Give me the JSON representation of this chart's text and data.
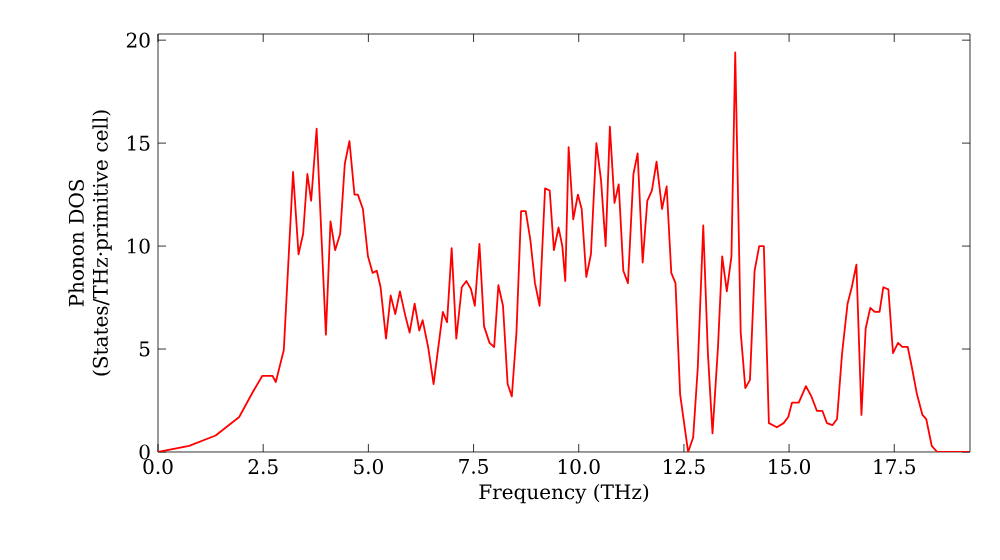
{
  "chart_data": {
    "type": "line",
    "xlabel": "Frequency (THz)",
    "ylabel": "Phonon DOS (States/THz·primitive cell)",
    "xlim": [
      0,
      19.3
    ],
    "ylim": [
      0,
      20.3
    ],
    "xticks": [
      {
        "value": 0,
        "label": "0.0"
      },
      {
        "value": 2.5,
        "label": "2.5"
      },
      {
        "value": 5,
        "label": "5.0"
      },
      {
        "value": 7.5,
        "label": "7.5"
      },
      {
        "value": 10,
        "label": "10.0"
      },
      {
        "value": 12.5,
        "label": "12.5"
      },
      {
        "value": 15,
        "label": "15.0"
      },
      {
        "value": 17.5,
        "label": "17.5"
      }
    ],
    "yticks": [
      0,
      5,
      10,
      15,
      20
    ],
    "marker": "none",
    "line_style": "solid",
    "x": [
      0,
      0.74,
      1.37,
      1.93,
      2.25,
      2.48,
      2.72,
      2.8,
      2.99,
      3.21,
      3.34,
      3.45,
      3.55,
      3.64,
      3.77,
      3.99,
      4.1,
      4.21,
      4.33,
      4.44,
      4.55,
      4.67,
      4.75,
      4.87,
      4.99,
      5.1,
      5.2,
      5.29,
      5.42,
      5.53,
      5.64,
      5.75,
      5.88,
      5.98,
      6.1,
      6.21,
      6.29,
      6.42,
      6.55,
      6.77,
      6.87,
      6.98,
      7.09,
      7.22,
      7.33,
      7.44,
      7.53,
      7.64,
      7.75,
      7.88,
      7.99,
      8.09,
      8.2,
      8.31,
      8.41,
      8.52,
      8.63,
      8.74,
      8.85,
      8.96,
      9.07,
      9.2,
      9.31,
      9.41,
      9.52,
      9.61,
      9.68,
      9.76,
      9.87,
      9.98,
      10.07,
      10.18,
      10.29,
      10.42,
      10.53,
      10.64,
      10.74,
      10.85,
      10.95,
      11.06,
      11.17,
      11.3,
      11.4,
      11.52,
      11.63,
      11.74,
      11.85,
      11.98,
      12.09,
      12.2,
      12.3,
      12.41,
      12.6,
      12.72,
      12.83,
      12.96,
      13.07,
      13.18,
      13.31,
      13.41,
      13.52,
      13.63,
      13.72,
      13.85,
      13.96,
      14.07,
      14.18,
      14.29,
      14.4,
      14.52,
      14.71,
      14.87,
      14.98,
      15.07,
      15.23,
      15.4,
      15.53,
      15.66,
      15.79,
      15.9,
      16.03,
      16.14,
      16.26,
      16.39,
      16.49,
      16.6,
      16.72,
      16.82,
      16.93,
      17.04,
      17.15,
      17.24,
      17.36,
      17.47,
      17.59,
      17.69,
      17.82,
      17.91,
      18.04,
      18.17,
      18.26,
      18.39,
      18.52,
      19.28
    ],
    "series": [
      {
        "color": "#ff0000",
        "values": [
          0,
          0.3,
          0.8,
          1.7,
          2.9,
          3.7,
          3.7,
          3.4,
          4.95,
          13.6,
          9.6,
          10.6,
          13.5,
          12.2,
          15.7,
          5.7,
          11.2,
          9.8,
          10.6,
          14.0,
          15.1,
          12.5,
          12.5,
          11.8,
          9.5,
          8.7,
          8.8,
          8.0,
          5.5,
          7.6,
          6.7,
          7.8,
          6.6,
          5.8,
          7.2,
          5.9,
          6.4,
          5.1,
          3.3,
          6.8,
          6.3,
          9.9,
          5.5,
          8.0,
          8.3,
          7.9,
          7.1,
          10.1,
          6.1,
          5.3,
          5.1,
          8.1,
          7.1,
          3.3,
          2.7,
          5.8,
          11.7,
          11.7,
          10.3,
          8.2,
          7.1,
          12.8,
          12.7,
          9.8,
          10.9,
          10.0,
          8.3,
          14.8,
          11.3,
          12.5,
          11.8,
          8.5,
          9.6,
          15.0,
          13.2,
          10.0,
          15.8,
          12.1,
          13.0,
          8.8,
          8.2,
          13.5,
          14.5,
          9.2,
          12.2,
          12.7,
          14.1,
          11.8,
          12.9,
          8.7,
          8.2,
          2.8,
          0,
          0.7,
          4.1,
          11.0,
          4.8,
          0.9,
          5.1,
          9.5,
          7.8,
          9.5,
          19.4,
          5.8,
          3.1,
          3.5,
          8.8,
          10.0,
          10.0,
          1.4,
          1.2,
          1.4,
          1.7,
          2.4,
          2.4,
          3.2,
          2.7,
          2.0,
          2.0,
          1.4,
          1.3,
          1.6,
          4.8,
          7.2,
          8.0,
          9.1,
          1.8,
          6.0,
          7.0,
          6.8,
          6.8,
          8.0,
          7.9,
          4.8,
          5.3,
          5.1,
          5.1,
          4.2,
          2.8,
          1.8,
          1.6,
          0.3,
          0,
          0
        ]
      }
    ]
  }
}
